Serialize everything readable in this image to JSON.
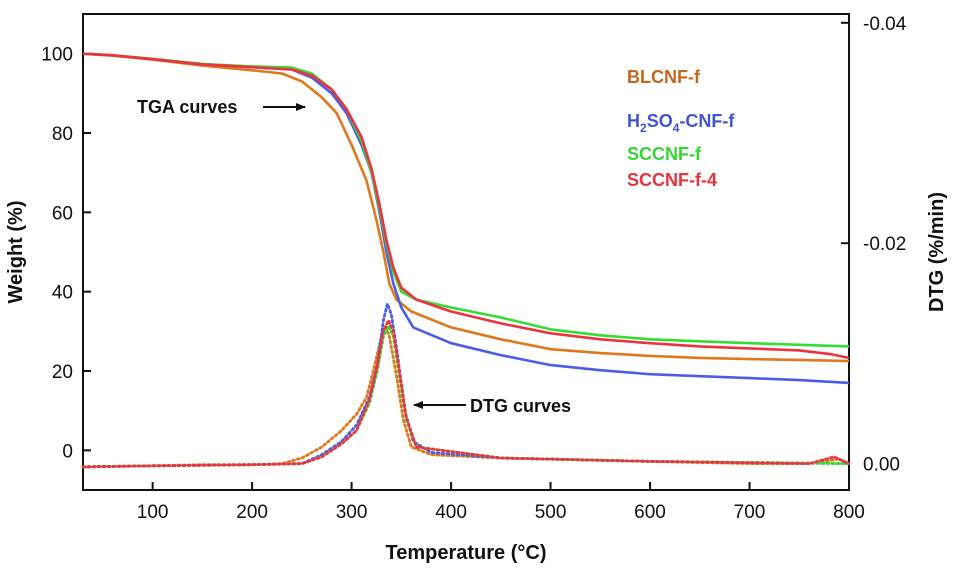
{
  "chart_data": {
    "type": "line",
    "title": "",
    "xlabel": "Temperature (°C)",
    "ylabel": "Weight (%)",
    "y2label": "DTG (%/min)",
    "xlim": [
      30,
      800
    ],
    "ylim": [
      -10,
      110
    ],
    "y2lim": [
      0.0024,
      -0.0408
    ],
    "x_ticks": [
      "100",
      "200",
      "300",
      "400",
      "500",
      "600",
      "700",
      "800"
    ],
    "y_ticks": [
      "0",
      "20",
      "40",
      "60",
      "80",
      "100"
    ],
    "y2_ticks": [
      "0.00",
      "-0.02",
      "-0.04"
    ],
    "grid": false,
    "legend_position": "top-right",
    "annotations": [
      {
        "text": "TGA curves",
        "target": [
          300,
          88
        ]
      },
      {
        "text": "DTG curves",
        "target": [
          362,
          12
        ]
      }
    ],
    "series": [
      {
        "name": "BLCNF-f",
        "color": "#e0781e",
        "tga": [
          [
            30,
            100
          ],
          [
            60,
            99.5
          ],
          [
            100,
            98.5
          ],
          [
            150,
            97
          ],
          [
            200,
            95.8
          ],
          [
            230,
            95
          ],
          [
            250,
            93
          ],
          [
            270,
            89
          ],
          [
            285,
            85
          ],
          [
            300,
            77
          ],
          [
            315,
            68
          ],
          [
            325,
            58
          ],
          [
            332,
            50
          ],
          [
            338,
            42
          ],
          [
            345,
            38
          ],
          [
            360,
            35
          ],
          [
            400,
            31
          ],
          [
            450,
            28
          ],
          [
            500,
            25.5
          ],
          [
            550,
            24.5
          ],
          [
            600,
            23.8
          ],
          [
            650,
            23.3
          ],
          [
            700,
            23.0
          ],
          [
            750,
            22.8
          ],
          [
            800,
            22.5
          ]
        ],
        "dtg": [
          [
            30,
            0.0003
          ],
          [
            100,
            0.0002
          ],
          [
            150,
            0.0001
          ],
          [
            200,
            0.0001
          ],
          [
            230,
            0.0
          ],
          [
            250,
            -0.0005
          ],
          [
            270,
            -0.0015
          ],
          [
            290,
            -0.003
          ],
          [
            305,
            -0.0045
          ],
          [
            315,
            -0.006
          ],
          [
            322,
            -0.0085
          ],
          [
            330,
            -0.0115
          ],
          [
            334,
            -0.0125
          ],
          [
            338,
            -0.0115
          ],
          [
            345,
            -0.008
          ],
          [
            352,
            -0.004
          ],
          [
            360,
            -0.0015
          ],
          [
            380,
            -0.0008
          ],
          [
            450,
            -0.0005
          ],
          [
            600,
            -0.0002
          ],
          [
            700,
            0.0
          ],
          [
            760,
            0.0
          ],
          [
            790,
            -0.0004
          ],
          [
            800,
            0.0
          ]
        ]
      },
      {
        "name": "H2SO4-CNF-f",
        "color": "#4a5ee8",
        "tga": [
          [
            30,
            100
          ],
          [
            60,
            99.6
          ],
          [
            100,
            98.6
          ],
          [
            150,
            97.4
          ],
          [
            200,
            96.6
          ],
          [
            240,
            96
          ],
          [
            260,
            94
          ],
          [
            280,
            90
          ],
          [
            295,
            85
          ],
          [
            310,
            77
          ],
          [
            320,
            70
          ],
          [
            328,
            60
          ],
          [
            335,
            50
          ],
          [
            342,
            42
          ],
          [
            350,
            36
          ],
          [
            362,
            31
          ],
          [
            400,
            27
          ],
          [
            450,
            24
          ],
          [
            500,
            21.5
          ],
          [
            550,
            20.2
          ],
          [
            600,
            19.2
          ],
          [
            650,
            18.7
          ],
          [
            700,
            18.2
          ],
          [
            750,
            17.7
          ],
          [
            800,
            17
          ]
        ],
        "dtg": [
          [
            30,
            0.0003
          ],
          [
            100,
            0.0002
          ],
          [
            200,
            0.0001
          ],
          [
            250,
            0.0
          ],
          [
            270,
            -0.0008
          ],
          [
            290,
            -0.002
          ],
          [
            305,
            -0.0035
          ],
          [
            318,
            -0.006
          ],
          [
            326,
            -0.009
          ],
          [
            332,
            -0.013
          ],
          [
            336,
            -0.0145
          ],
          [
            340,
            -0.0135
          ],
          [
            346,
            -0.01
          ],
          [
            353,
            -0.005
          ],
          [
            362,
            -0.002
          ],
          [
            380,
            -0.001
          ],
          [
            450,
            -0.0005
          ],
          [
            600,
            -0.0002
          ],
          [
            800,
            0.0
          ]
        ]
      },
      {
        "name": "SCCNF-f",
        "color": "#33dd33",
        "tga": [
          [
            30,
            100
          ],
          [
            60,
            99.6
          ],
          [
            100,
            98.7
          ],
          [
            150,
            97.4
          ],
          [
            200,
            96.8
          ],
          [
            240,
            96.5
          ],
          [
            260,
            95
          ],
          [
            280,
            91
          ],
          [
            295,
            86
          ],
          [
            310,
            78
          ],
          [
            320,
            70
          ],
          [
            328,
            61
          ],
          [
            335,
            52
          ],
          [
            342,
            45
          ],
          [
            350,
            40
          ],
          [
            365,
            38
          ],
          [
            400,
            36
          ],
          [
            450,
            33.5
          ],
          [
            500,
            30.5
          ],
          [
            550,
            29
          ],
          [
            600,
            28
          ],
          [
            650,
            27.5
          ],
          [
            700,
            27
          ],
          [
            750,
            26.6
          ],
          [
            800,
            26.2
          ]
        ],
        "dtg": [
          [
            30,
            0.0003
          ],
          [
            100,
            0.0002
          ],
          [
            200,
            0.0001
          ],
          [
            250,
            0.0
          ],
          [
            270,
            -0.0006
          ],
          [
            290,
            -0.0018
          ],
          [
            305,
            -0.003
          ],
          [
            318,
            -0.0055
          ],
          [
            326,
            -0.0085
          ],
          [
            332,
            -0.0115
          ],
          [
            337,
            -0.0125
          ],
          [
            342,
            -0.0115
          ],
          [
            348,
            -0.008
          ],
          [
            355,
            -0.004
          ],
          [
            365,
            -0.0015
          ],
          [
            450,
            -0.0005
          ],
          [
            600,
            -0.0002
          ],
          [
            800,
            0.0
          ]
        ]
      },
      {
        "name": "SCCNF-f-4",
        "color": "#ee3340",
        "tga": [
          [
            30,
            100
          ],
          [
            60,
            99.6
          ],
          [
            100,
            98.6
          ],
          [
            150,
            97.3
          ],
          [
            200,
            96.6
          ],
          [
            240,
            96
          ],
          [
            260,
            94.5
          ],
          [
            280,
            91
          ],
          [
            295,
            86
          ],
          [
            310,
            79
          ],
          [
            320,
            71
          ],
          [
            328,
            62
          ],
          [
            335,
            53
          ],
          [
            342,
            46
          ],
          [
            350,
            41
          ],
          [
            365,
            38
          ],
          [
            400,
            35
          ],
          [
            450,
            32
          ],
          [
            500,
            29.5
          ],
          [
            550,
            28
          ],
          [
            600,
            27
          ],
          [
            650,
            26.2
          ],
          [
            700,
            25.7
          ],
          [
            750,
            25.2
          ],
          [
            780,
            24.3
          ],
          [
            800,
            23.3
          ]
        ],
        "dtg": [
          [
            30,
            0.0003
          ],
          [
            100,
            0.0002
          ],
          [
            200,
            0.0001
          ],
          [
            250,
            0.0
          ],
          [
            270,
            -0.0006
          ],
          [
            290,
            -0.0018
          ],
          [
            305,
            -0.003
          ],
          [
            318,
            -0.0058
          ],
          [
            326,
            -0.009
          ],
          [
            332,
            -0.012
          ],
          [
            337,
            -0.013
          ],
          [
            342,
            -0.012
          ],
          [
            348,
            -0.0085
          ],
          [
            355,
            -0.0042
          ],
          [
            365,
            -0.0015
          ],
          [
            450,
            -0.0005
          ],
          [
            600,
            -0.0002
          ],
          [
            760,
            0.0
          ],
          [
            785,
            -0.0006
          ],
          [
            800,
            0.0
          ]
        ]
      }
    ]
  },
  "legend": {
    "item0": {
      "text": "BLCNF-f",
      "color": "#c8651e"
    },
    "item1": {
      "pre": "H",
      "sub1": "2",
      "mid": "SO",
      "sub2": "4",
      "post": "-CNF-f",
      "color": "#3f55d8"
    },
    "item2": {
      "text": "SCCNF-f",
      "color": "#33d633"
    },
    "item3": {
      "text": "SCCNF-f-4",
      "color": "#e8333d"
    }
  }
}
